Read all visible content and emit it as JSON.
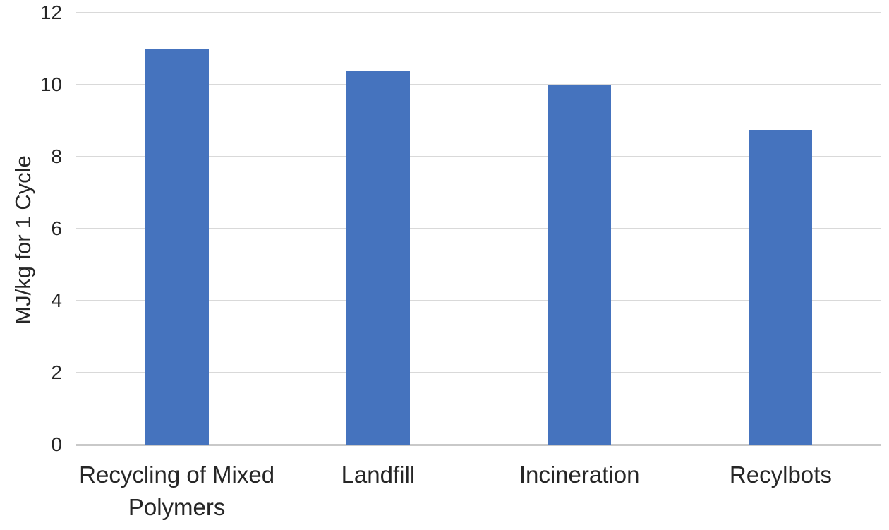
{
  "chart_data": {
    "type": "bar",
    "title": "",
    "categories": [
      "Recycling of Mixed Polymers",
      "Landfill",
      "Incineration",
      "Recylbots"
    ],
    "values": [
      11.0,
      10.4,
      10.0,
      8.75
    ],
    "xlabel": "",
    "ylabel": "MJ/kg for 1 Cycle",
    "ylim": [
      0,
      12
    ],
    "yticks": [
      0,
      2,
      4,
      6,
      8,
      10,
      12
    ],
    "grid": true,
    "legend": false,
    "bar_color": "#4573BE",
    "gridline_color": "#d9d9d9",
    "baseline_color": "#c9c9c9",
    "text_color": "#262626",
    "background_color": "#ffffff"
  }
}
